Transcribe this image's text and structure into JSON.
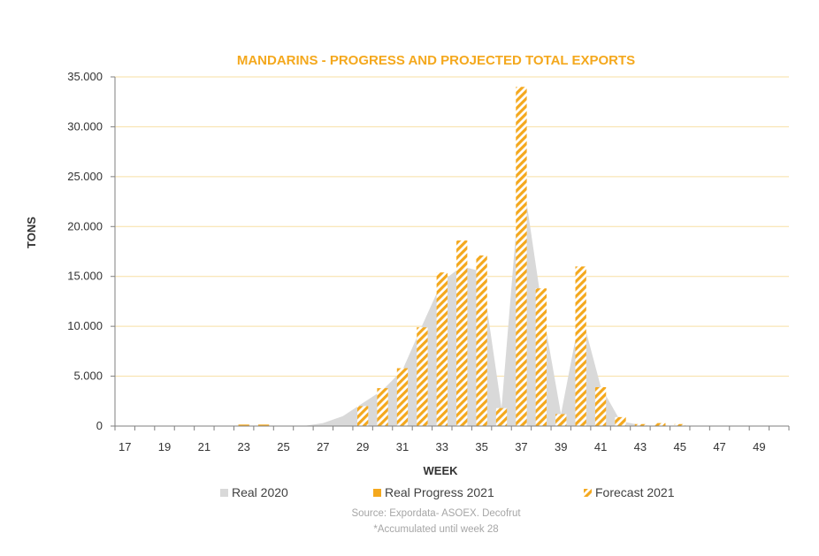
{
  "chart_data": {
    "type": "bar",
    "title": "MANDARINS - PROGRESS AND PROJECTED TOTAL EXPORTS",
    "xlabel": "WEEK",
    "ylabel": "TONS",
    "ylim": [
      0,
      35000
    ],
    "y_ticks": [
      0,
      5000,
      10000,
      15000,
      20000,
      25000,
      30000,
      35000
    ],
    "y_tick_labels": [
      "0",
      "5.000",
      "10.000",
      "15.000",
      "20.000",
      "25.000",
      "30.000",
      "35.000"
    ],
    "x_weeks": [
      17,
      18,
      19,
      20,
      21,
      22,
      23,
      24,
      25,
      26,
      27,
      28,
      29,
      30,
      31,
      32,
      33,
      34,
      35,
      36,
      37,
      38,
      39,
      40,
      41,
      42,
      43,
      44,
      45,
      46,
      47,
      48,
      49,
      50
    ],
    "x_tick_labels": [
      "17",
      "19",
      "21",
      "23",
      "25",
      "27",
      "29",
      "31",
      "33",
      "35",
      "37",
      "39",
      "41",
      "43",
      "45",
      "47",
      "49"
    ],
    "grid": true,
    "legend_position": "bottom",
    "series": [
      {
        "name": "Real 2020",
        "kind": "area",
        "color": "#d9d9d9",
        "x": [
          17,
          18,
          19,
          20,
          21,
          22,
          23,
          24,
          25,
          26,
          27,
          28,
          29,
          30,
          31,
          32,
          33,
          34,
          35,
          36,
          37,
          38,
          39,
          40,
          41,
          42,
          43,
          44,
          45,
          46,
          47,
          48,
          49,
          50
        ],
        "values": [
          0,
          0,
          0,
          0,
          0,
          0,
          0,
          0,
          0,
          0,
          300,
          1000,
          2300,
          3600,
          5600,
          10100,
          14500,
          16000,
          15500,
          1800,
          26000,
          12500,
          1200,
          11500,
          4000,
          500,
          100,
          0,
          0,
          0,
          0,
          0,
          0,
          0
        ]
      },
      {
        "name": "Real Progress 2021",
        "kind": "bar",
        "color": "#f4a81d",
        "x": [
          23,
          24
        ],
        "values": [
          150,
          150
        ]
      },
      {
        "name": "Forecast 2021",
        "kind": "bar-hatched",
        "color": "#f4a81d",
        "x": [
          29,
          30,
          31,
          32,
          33,
          34,
          35,
          36,
          37,
          38,
          39,
          40,
          41,
          42,
          43,
          44,
          45
        ],
        "values": [
          2000,
          3800,
          5800,
          9900,
          15400,
          18600,
          17100,
          1800,
          34000,
          13800,
          1200,
          16000,
          3900,
          900,
          200,
          300,
          200
        ]
      }
    ],
    "notes": [
      "Source:  Expordata- ASOEX.  Decofrut",
      "*Accumulated  until week  28"
    ]
  }
}
